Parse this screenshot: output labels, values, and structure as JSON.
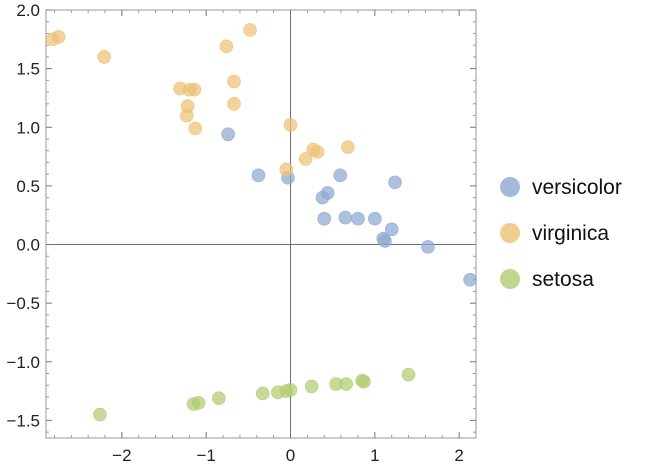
{
  "chart_data": {
    "type": "scatter",
    "title": "",
    "xlabel": "",
    "ylabel": "",
    "xlim": [
      -2.9,
      2.2
    ],
    "ylim": [
      -1.65,
      2.0
    ],
    "x_ticks": [
      -2,
      -1,
      0,
      1,
      2
    ],
    "y_ticks": [
      2.0,
      1.5,
      1.0,
      0.5,
      0.0,
      -0.5,
      -1.0,
      -1.5
    ],
    "x_tick_labels": [
      "−2",
      "−1",
      "0",
      "1",
      "2"
    ],
    "y_tick_labels": [
      "2.0",
      "1.5",
      "1.0",
      "0.5",
      "0.0",
      "−0.5",
      "−1.0",
      "−1.5"
    ],
    "grid": false,
    "legend_position": "right",
    "series": [
      {
        "name": "versicolor",
        "color": "#8ea8d1",
        "x": [
          -0.74,
          -0.38,
          -0.03,
          0.38,
          0.44,
          0.59,
          0.4,
          0.65,
          0.8,
          1.0,
          1.1,
          1.12,
          1.2,
          1.24,
          1.63,
          2.13
        ],
        "y": [
          0.94,
          0.59,
          0.57,
          0.4,
          0.44,
          0.59,
          0.22,
          0.23,
          0.22,
          0.22,
          0.05,
          0.03,
          0.13,
          0.53,
          -0.02,
          -0.3
        ]
      },
      {
        "name": "virginica",
        "color": "#ecc274",
        "x": [
          -2.82,
          -2.75,
          -2.21,
          -1.31,
          -1.2,
          -1.14,
          -1.22,
          -1.23,
          -1.13,
          -0.76,
          -0.67,
          -0.67,
          -0.48,
          0.0,
          -0.05,
          0.18,
          0.27,
          0.32,
          0.68
        ],
        "y": [
          1.75,
          1.77,
          1.6,
          1.33,
          1.32,
          1.32,
          1.18,
          1.1,
          0.99,
          1.69,
          1.39,
          1.2,
          1.83,
          1.02,
          0.64,
          0.73,
          0.81,
          0.79,
          0.83
        ]
      },
      {
        "name": "setosa",
        "color": "#b2cc72",
        "x": [
          -2.26,
          -1.15,
          -1.09,
          -0.85,
          -0.33,
          -0.15,
          -0.05,
          0.0,
          0.25,
          0.54,
          0.66,
          0.85,
          0.87,
          1.4
        ],
        "y": [
          -1.45,
          -1.36,
          -1.35,
          -1.31,
          -1.27,
          -1.26,
          -1.25,
          -1.24,
          -1.21,
          -1.19,
          -1.19,
          -1.16,
          -1.17,
          -1.11
        ]
      }
    ]
  }
}
